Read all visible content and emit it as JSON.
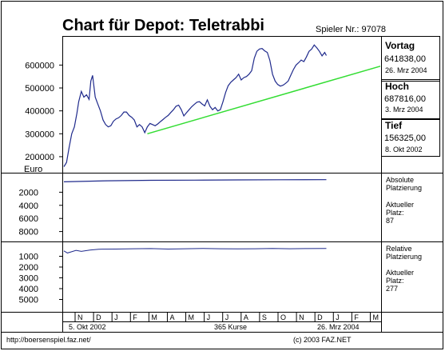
{
  "header": {
    "title": "Chart für Depot:  Teletrabbi",
    "player_label": "Spieler Nr.: 97078"
  },
  "panel": {
    "prev_day_label": "Vortag",
    "prev_day_value": "641838,00",
    "prev_day_date": "26. Mrz 2004",
    "high_label": "Hoch",
    "high_value": "687816,00",
    "high_date": "3. Mrz 2004",
    "low_label": "Tief",
    "low_value": "156325,00",
    "low_date": "8. Okt 2002"
  },
  "abs_panel": {
    "title_line1": "Absolute",
    "title_line2": "Platzierung",
    "cur_line1": "Aktueller",
    "cur_line2": "Platz:",
    "cur_value": "87"
  },
  "rel_panel": {
    "title_line1": "Relative",
    "title_line2": "Platzierung",
    "cur_line1": "Aktueller",
    "cur_line2": "Platz:",
    "cur_value": "277"
  },
  "footer": {
    "start_date": "5. Okt 2002",
    "course_count": "365 Kurse",
    "end_date": "26. Mrz 2004",
    "url": "http://boersenspiel.faz.net/",
    "copyright": "(c) 2003 FAZ.NET"
  },
  "colors": {
    "series": "#1f2a8c",
    "trend": "#33dd33",
    "grid": "#000000"
  },
  "chart_data": [
    {
      "type": "line",
      "title": "Chart für Depot:  Teletrabbi",
      "ylabel": "Euro",
      "yticks": [
        200000,
        300000,
        400000,
        500000,
        600000
      ],
      "ylim": [
        130000,
        720000
      ],
      "xlim": [
        0,
        364
      ],
      "x_tick_labels": [
        "N",
        "D",
        "J",
        "F",
        "M",
        "A",
        "M",
        "J",
        "J",
        "A",
        "S",
        "O",
        "N",
        "D",
        "J",
        "F",
        "M"
      ],
      "grid": false,
      "series": [
        {
          "name": "",
          "points": [
            [
              0,
              156325
            ],
            [
              3,
              175000
            ],
            [
              6,
              240000
            ],
            [
              9,
              300000
            ],
            [
              12,
              330000
            ],
            [
              15,
              390000
            ],
            [
              17,
              440000
            ],
            [
              20,
              485000
            ],
            [
              23,
              460000
            ],
            [
              26,
              470000
            ],
            [
              29,
              450000
            ],
            [
              31,
              530000
            ],
            [
              33,
              555000
            ],
            [
              36,
              460000
            ],
            [
              39,
              430000
            ],
            [
              42,
              400000
            ],
            [
              45,
              360000
            ],
            [
              48,
              340000
            ],
            [
              51,
              330000
            ],
            [
              54,
              335000
            ],
            [
              57,
              355000
            ],
            [
              60,
              365000
            ],
            [
              63,
              370000
            ],
            [
              66,
              380000
            ],
            [
              69,
              395000
            ],
            [
              72,
              395000
            ],
            [
              75,
              380000
            ],
            [
              78,
              372000
            ],
            [
              81,
              360000
            ],
            [
              84,
              330000
            ],
            [
              87,
              340000
            ],
            [
              90,
              330000
            ],
            [
              93,
              305000
            ],
            [
              96,
              330000
            ],
            [
              99,
              345000
            ],
            [
              102,
              340000
            ],
            [
              105,
              335000
            ],
            [
              108,
              343000
            ],
            [
              111,
              353000
            ],
            [
              114,
              362000
            ],
            [
              117,
              372000
            ],
            [
              120,
              380000
            ],
            [
              123,
              393000
            ],
            [
              126,
              405000
            ],
            [
              129,
              420000
            ],
            [
              132,
              425000
            ],
            [
              135,
              405000
            ],
            [
              138,
              378000
            ],
            [
              141,
              392000
            ],
            [
              144,
              405000
            ],
            [
              147,
              418000
            ],
            [
              150,
              428000
            ],
            [
              153,
              438000
            ],
            [
              156,
              440000
            ],
            [
              159,
              430000
            ],
            [
              162,
              422000
            ],
            [
              165,
              448000
            ],
            [
              168,
              420000
            ],
            [
              171,
              405000
            ],
            [
              174,
              415000
            ],
            [
              177,
              400000
            ],
            [
              180,
              405000
            ],
            [
              183,
              440000
            ],
            [
              186,
              480000
            ],
            [
              189,
              510000
            ],
            [
              192,
              525000
            ],
            [
              195,
              535000
            ],
            [
              198,
              545000
            ],
            [
              201,
              560000
            ],
            [
              204,
              535000
            ],
            [
              207,
              545000
            ],
            [
              210,
              550000
            ],
            [
              213,
              560000
            ],
            [
              216,
              575000
            ],
            [
              219,
              630000
            ],
            [
              222,
              660000
            ],
            [
              225,
              670000
            ],
            [
              228,
              672000
            ],
            [
              231,
              662000
            ],
            [
              234,
              655000
            ],
            [
              237,
              620000
            ],
            [
              240,
              560000
            ],
            [
              243,
              530000
            ],
            [
              246,
              515000
            ],
            [
              249,
              508000
            ],
            [
              252,
              512000
            ],
            [
              255,
              520000
            ],
            [
              258,
              530000
            ],
            [
              261,
              555000
            ],
            [
              264,
              580000
            ],
            [
              267,
              600000
            ],
            [
              270,
              610000
            ],
            [
              273,
              622000
            ],
            [
              276,
              615000
            ],
            [
              279,
              635000
            ],
            [
              282,
              660000
            ],
            [
              285,
              670000
            ],
            [
              288,
              687816
            ],
            [
              291,
              675000
            ],
            [
              294,
              660000
            ],
            [
              297,
              640000
            ],
            [
              300,
              655000
            ],
            [
              302,
              641838
            ]
          ]
        }
      ],
      "trendline": [
        [
          96,
          300000
        ],
        [
          364,
          595000
        ]
      ]
    },
    {
      "type": "line",
      "title": "",
      "ylabel": "",
      "yticks": [
        2000,
        4000,
        6000,
        8000
      ],
      "ylim": [
        0,
        10000
      ],
      "series": [
        {
          "name": "Absolute Platzierung",
          "points": [
            [
              0,
              420
            ],
            [
              50,
              250
            ],
            [
              100,
              180
            ],
            [
              150,
              160
            ],
            [
              200,
              120
            ],
            [
              250,
              100
            ],
            [
              302,
              87
            ]
          ]
        }
      ]
    },
    {
      "type": "line",
      "title": "",
      "ylabel": "",
      "yticks": [
        1000,
        2000,
        3000,
        4000,
        5000
      ],
      "ylim": [
        0,
        6000
      ],
      "series": [
        {
          "name": "Relative Platzierung",
          "points": [
            [
              0,
              500
            ],
            [
              4,
              700
            ],
            [
              8,
              600
            ],
            [
              14,
              450
            ],
            [
              20,
              550
            ],
            [
              30,
              420
            ],
            [
              40,
              350
            ],
            [
              60,
              330
            ],
            [
              80,
              300
            ],
            [
              100,
              290
            ],
            [
              120,
              330
            ],
            [
              140,
              300
            ],
            [
              160,
              280
            ],
            [
              180,
              300
            ],
            [
              200,
              320
            ],
            [
              220,
              300
            ],
            [
              240,
              280
            ],
            [
              260,
              300
            ],
            [
              280,
              290
            ],
            [
              302,
              277
            ]
          ]
        }
      ]
    }
  ]
}
